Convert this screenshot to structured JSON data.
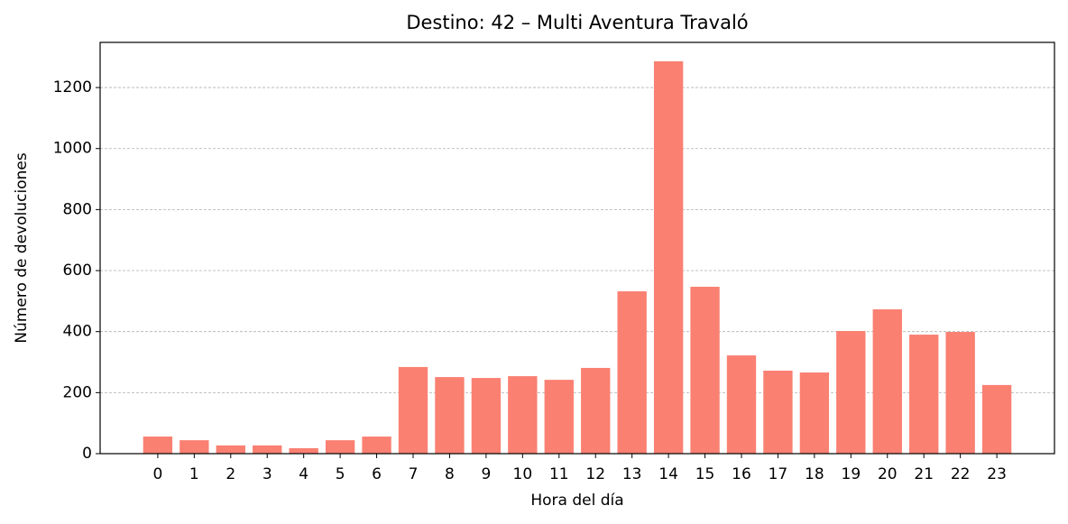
{
  "chart_data": {
    "type": "bar",
    "title": "Destino: 42 – Multi Aventura Travaló",
    "x_label": "Hora del día",
    "y_label": "Número de devoluciones",
    "categories": [
      "0",
      "1",
      "2",
      "3",
      "4",
      "5",
      "6",
      "7",
      "8",
      "9",
      "10",
      "11",
      "12",
      "13",
      "14",
      "15",
      "16",
      "17",
      "18",
      "19",
      "20",
      "21",
      "22",
      "23"
    ],
    "values": [
      56,
      44,
      27,
      27,
      18,
      44,
      56,
      284,
      251,
      248,
      254,
      242,
      281,
      532,
      1286,
      547,
      322,
      272,
      266,
      402,
      473,
      390,
      399,
      225
    ],
    "color": "#fa8072",
    "ylim": [
      0,
      1348
    ],
    "yticks": [
      0,
      200,
      400,
      600,
      800,
      1000,
      1200
    ],
    "grid": true
  }
}
